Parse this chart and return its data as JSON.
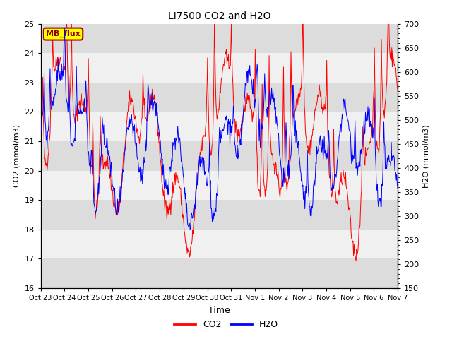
{
  "title": "LI7500 CO2 and H2O",
  "xlabel": "Time",
  "ylabel_left": "CO2 (mmol/m3)",
  "ylabel_right": "H2O (mmol/m3)",
  "ylim_left": [
    16.0,
    25.0
  ],
  "ylim_right": [
    150,
    700
  ],
  "yticks_left": [
    16.0,
    17.0,
    18.0,
    19.0,
    20.0,
    21.0,
    22.0,
    23.0,
    24.0,
    25.0
  ],
  "yticks_right": [
    150,
    200,
    250,
    300,
    350,
    400,
    450,
    500,
    550,
    600,
    650,
    700
  ],
  "xtick_labels": [
    "Oct 23",
    "Oct 24",
    "Oct 25",
    "Oct 26",
    "Oct 27",
    "Oct 28",
    "Oct 29",
    "Oct 30",
    "Oct 31",
    "Nov 1",
    "Nov 2",
    "Nov 3",
    "Nov 4",
    "Nov 5",
    "Nov 6",
    "Nov 7"
  ],
  "color_co2": "#FF0000",
  "color_h2o": "#0000FF",
  "color_bg_dark": "#DCDCDC",
  "color_bg_light": "#F0F0F0",
  "annotation_text": "MB_flux",
  "annotation_bg": "#FFFF00",
  "annotation_border": "#AA0000",
  "legend_co2": "CO2",
  "legend_h2o": "H2O",
  "n_days": 15,
  "seed": 42
}
